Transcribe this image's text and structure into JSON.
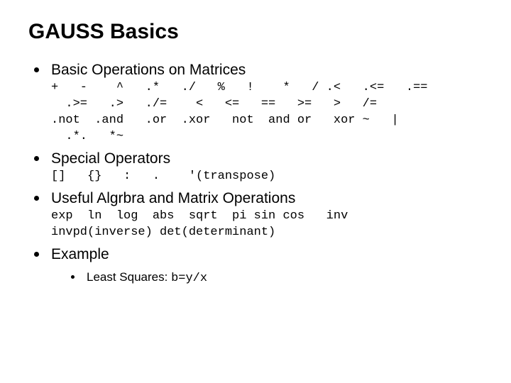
{
  "title": "GAUSS Basics",
  "items": [
    {
      "heading": "Basic Operations on Matrices",
      "code": "+   -    ^   .*   ./   %   !    *   / .<   .<=   .==\n  .>=   .>   ./=    <   <=   ==   >=   >   /=\n.not  .and   .or  .xor   not  and or   xor ~   |\n  .*.   *~"
    },
    {
      "heading": "Special Operators",
      "code": "[]   {}   :   .    '(transpose)"
    },
    {
      "heading": "Useful Algrbra and Matrix Operations",
      "code": "exp  ln  log  abs  sqrt  pi sin cos   inv\ninvpd(inverse) det(determinant)"
    },
    {
      "heading": "Example",
      "sub": {
        "label": "Least Squares: ",
        "code": "b=y/x"
      }
    }
  ]
}
